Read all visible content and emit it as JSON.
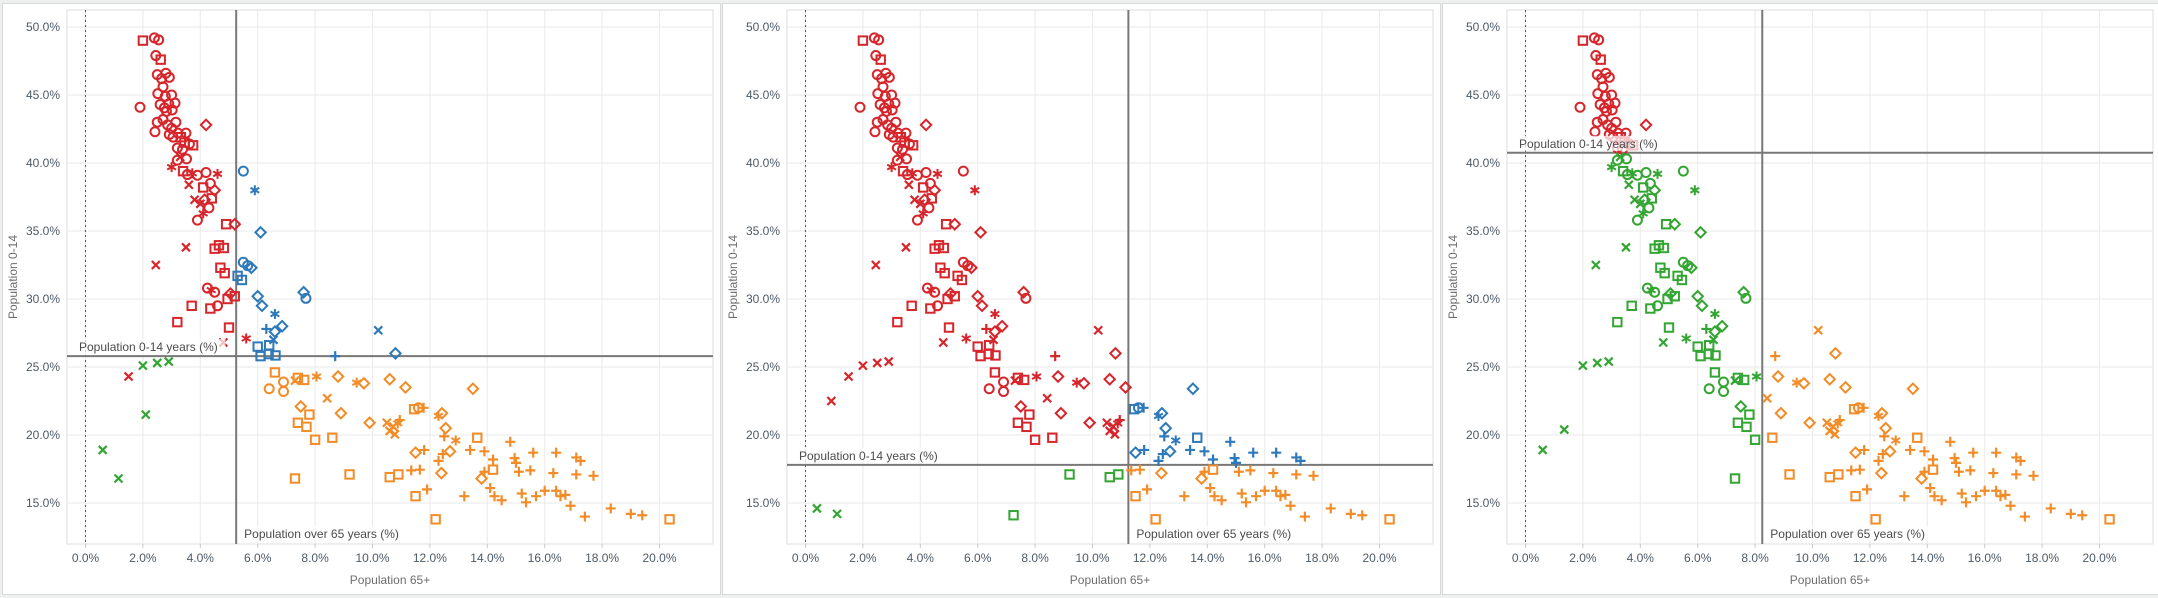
{
  "chart_data": {
    "type": "scatter",
    "x_title": "Population 65+",
    "y_title": "Population 0-14",
    "x_ticks": {
      "values": [
        0,
        2,
        4,
        6,
        8,
        10,
        12,
        14,
        16,
        18,
        20
      ],
      "labels": [
        "0.0%",
        "2.0%",
        "4.0%",
        "6.0%",
        "8.0%",
        "10.0%",
        "12.0%",
        "14.0%",
        "16.0%",
        "18.0%",
        "20.0%"
      ]
    },
    "y_ticks": {
      "values": [
        15,
        20,
        25,
        30,
        35,
        40,
        45,
        50
      ],
      "labels": [
        "15.0%",
        "20.0%",
        "25.0%",
        "30.0%",
        "35.0%",
        "40.0%",
        "45.0%",
        "50.0%"
      ]
    },
    "x_range": [
      -0.64,
      21.9
    ],
    "y_range": [
      12.0,
      51.2
    ],
    "grid": true,
    "legend": "none",
    "zero_line_x": 0,
    "colors": {
      "r": "#d6252b",
      "b": "#2e79b9",
      "o": "#f28c28",
      "g": "#33a532",
      "refline": "#787878",
      "grid": "#e9e9e9",
      "tick_text": "#4d5a66",
      "axis_title": "#6e6e6e",
      "ref_label_text": "#4b4b4b",
      "zero_line": "#555555"
    },
    "shape_legend": {
      "c": "circle",
      "s": "square",
      "x": "cross-x",
      "d": "diamond",
      "p": "plus",
      "a": "asterisk"
    },
    "panels": [
      {
        "name": "panel-1",
        "vline_value": 5.25,
        "hline_value": 25.8,
        "vline_label": "Population over 65 years (%)",
        "hline_label": "Population 0-14 years (%)"
      },
      {
        "name": "panel-2",
        "vline_value": 11.25,
        "hline_value": 17.8,
        "vline_label": "Population over 65 years (%)",
        "hline_label": "Population 0-14 years (%)"
      },
      {
        "name": "panel-3",
        "vline_value": 8.25,
        "hline_value": 40.75,
        "vline_label": "Population over 65 years (%)",
        "hline_label": "Population 0-14 years (%)"
      }
    ],
    "note_colors_per_point": "4th item = cluster color in panel1/panel2/panel3; '-' = not shown in that panel",
    "points": [
      [
        2.0,
        49.0,
        "s",
        "rrr"
      ],
      [
        2.4,
        49.2,
        "c",
        "rrr"
      ],
      [
        2.55,
        49.05,
        "c",
        "rrr"
      ],
      [
        2.45,
        47.9,
        "c",
        "rrr"
      ],
      [
        2.62,
        47.6,
        "s",
        "rrr"
      ],
      [
        2.5,
        46.5,
        "c",
        "rrr"
      ],
      [
        2.65,
        46.2,
        "c",
        "rrr"
      ],
      [
        2.8,
        46.6,
        "c",
        "rrr"
      ],
      [
        2.92,
        46.3,
        "c",
        "rrr"
      ],
      [
        2.7,
        45.6,
        "c",
        "rrr"
      ],
      [
        2.52,
        45.1,
        "c",
        "rrr"
      ],
      [
        2.78,
        44.9,
        "c",
        "rrr"
      ],
      [
        3.0,
        45.0,
        "c",
        "rrr"
      ],
      [
        1.9,
        44.1,
        "c",
        "rrr"
      ],
      [
        2.6,
        44.3,
        "c",
        "rrr"
      ],
      [
        2.75,
        44.05,
        "c",
        "rrr"
      ],
      [
        2.9,
        44.35,
        "c",
        "rrr"
      ],
      [
        2.82,
        43.8,
        "c",
        "rrr"
      ],
      [
        3.02,
        43.9,
        "c",
        "rrr"
      ],
      [
        3.12,
        44.4,
        "c",
        "rrr"
      ],
      [
        2.5,
        43.0,
        "c",
        "rrr"
      ],
      [
        2.7,
        43.2,
        "c",
        "rrr"
      ],
      [
        2.86,
        42.8,
        "c",
        "rrr"
      ],
      [
        3.0,
        42.55,
        "c",
        "rrr"
      ],
      [
        3.15,
        43.0,
        "c",
        "rrr"
      ],
      [
        2.42,
        42.3,
        "c",
        "rrr"
      ],
      [
        2.92,
        42.1,
        "c",
        "rrr"
      ],
      [
        3.05,
        41.9,
        "c",
        "rrr"
      ],
      [
        3.22,
        42.2,
        "c",
        "rrr"
      ],
      [
        3.32,
        41.9,
        "s",
        "rrr"
      ],
      [
        3.5,
        42.2,
        "c",
        "rrr"
      ],
      [
        3.45,
        41.5,
        "s",
        "rrr"
      ],
      [
        3.62,
        41.4,
        "c",
        "rrr"
      ],
      [
        3.75,
        41.3,
        "s",
        "rrr"
      ],
      [
        4.2,
        42.8,
        "d",
        "rrr"
      ],
      [
        3.2,
        41.1,
        "c",
        "rrr"
      ],
      [
        3.38,
        41.0,
        "c",
        "rrr"
      ],
      [
        3.0,
        39.7,
        "a",
        "rrg"
      ],
      [
        3.2,
        40.2,
        "c",
        "rrg"
      ],
      [
        3.3,
        40.45,
        "x",
        "rrg"
      ],
      [
        3.52,
        40.3,
        "c",
        "rrg"
      ],
      [
        3.4,
        39.4,
        "s",
        "rrg"
      ],
      [
        3.55,
        39.15,
        "c",
        "rrg"
      ],
      [
        3.72,
        39.25,
        "a",
        "rrg"
      ],
      [
        3.9,
        39.1,
        "c",
        "rrg"
      ],
      [
        4.2,
        39.3,
        "c",
        "rrg"
      ],
      [
        4.6,
        39.2,
        "a",
        "rrg"
      ],
      [
        5.5,
        39.4,
        "c",
        "brg"
      ],
      [
        3.6,
        38.4,
        "x",
        "rrg"
      ],
      [
        4.1,
        38.2,
        "s",
        "rrg"
      ],
      [
        4.35,
        38.5,
        "c",
        "rrg"
      ],
      [
        4.5,
        38.0,
        "d",
        "rrg"
      ],
      [
        5.9,
        38.0,
        "a",
        "brg"
      ],
      [
        3.8,
        37.3,
        "x",
        "rrg"
      ],
      [
        4.0,
        37.0,
        "x",
        "rrg"
      ],
      [
        4.15,
        37.3,
        "d",
        "rrg"
      ],
      [
        4.4,
        37.4,
        "s",
        "rrg"
      ],
      [
        4.3,
        36.7,
        "c",
        "rrg"
      ],
      [
        4.1,
        36.3,
        "a",
        "rrg"
      ],
      [
        3.9,
        35.8,
        "c",
        "rrg"
      ],
      [
        4.9,
        35.5,
        "s",
        "rrg"
      ],
      [
        5.2,
        35.5,
        "d",
        "rrg"
      ],
      [
        6.1,
        34.9,
        "d",
        "brg"
      ],
      [
        3.5,
        33.8,
        "x",
        "rrg"
      ],
      [
        4.5,
        33.7,
        "s",
        "rrg"
      ],
      [
        4.65,
        33.95,
        "s",
        "rrg"
      ],
      [
        4.82,
        33.75,
        "s",
        "rrg"
      ],
      [
        2.45,
        32.5,
        "x",
        "rrg"
      ],
      [
        4.7,
        32.3,
        "s",
        "rrg"
      ],
      [
        5.5,
        32.7,
        "c",
        "brg"
      ],
      [
        5.65,
        32.45,
        "c",
        "brg"
      ],
      [
        5.78,
        32.3,
        "d",
        "brg"
      ],
      [
        4.85,
        31.9,
        "s",
        "rrg"
      ],
      [
        5.3,
        31.7,
        "s",
        "brg"
      ],
      [
        5.45,
        31.4,
        "s",
        "brg"
      ],
      [
        4.25,
        30.8,
        "c",
        "rrg"
      ],
      [
        4.38,
        30.65,
        "a",
        "rrg"
      ],
      [
        4.5,
        30.5,
        "c",
        "rrg"
      ],
      [
        5.05,
        30.4,
        "d",
        "rrg"
      ],
      [
        5.2,
        30.2,
        "s",
        "rrg"
      ],
      [
        4.95,
        30.0,
        "s",
        "rrg"
      ],
      [
        4.6,
        29.5,
        "c",
        "rrg"
      ],
      [
        4.35,
        29.3,
        "s",
        "rrg"
      ],
      [
        3.7,
        29.5,
        "s",
        "rrg"
      ],
      [
        6.0,
        30.2,
        "d",
        "brg"
      ],
      [
        6.15,
        29.5,
        "d",
        "brg"
      ],
      [
        7.6,
        30.5,
        "d",
        "brg"
      ],
      [
        7.68,
        30.05,
        "c",
        "brg"
      ],
      [
        3.2,
        28.3,
        "s",
        "rrg"
      ],
      [
        5.0,
        27.9,
        "s",
        "rrg"
      ],
      [
        6.6,
        28.9,
        "a",
        "brg"
      ],
      [
        6.85,
        28.0,
        "d",
        "brg"
      ],
      [
        6.6,
        27.6,
        "d",
        "brg"
      ],
      [
        6.3,
        27.8,
        "p",
        "brg"
      ],
      [
        5.6,
        27.1,
        "a",
        "rrg"
      ],
      [
        4.8,
        26.8,
        "x",
        "rrg"
      ],
      [
        6.55,
        27.0,
        "x",
        "brg"
      ],
      [
        10.2,
        27.7,
        "x",
        "bro"
      ],
      [
        6.0,
        26.5,
        "s",
        "brg"
      ],
      [
        6.4,
        26.6,
        "s",
        "brg"
      ],
      [
        10.8,
        26.0,
        "d",
        "bro"
      ],
      [
        6.1,
        25.8,
        "s",
        "brg"
      ],
      [
        6.38,
        25.95,
        "s",
        "brg"
      ],
      [
        6.62,
        25.85,
        "s",
        "brg"
      ],
      [
        8.7,
        25.8,
        "p",
        "bro"
      ],
      [
        0.9,
        22.5,
        "x",
        "-r-"
      ],
      [
        1.5,
        24.3,
        "x",
        "rr-"
      ],
      [
        2.0,
        25.1,
        "x",
        "grg"
      ],
      [
        2.5,
        25.3,
        "x",
        "grg"
      ],
      [
        2.9,
        25.4,
        "x",
        "grg"
      ],
      [
        0.4,
        14.6,
        "x",
        "-g-"
      ],
      [
        1.1,
        14.2,
        "x",
        "-g-"
      ],
      [
        0.6,
        18.9,
        "x",
        "g-g"
      ],
      [
        1.15,
        16.8,
        "x",
        "g--"
      ],
      [
        1.35,
        20.4,
        "x",
        "--g"
      ],
      [
        2.1,
        21.5,
        "x",
        "g--"
      ],
      [
        6.4,
        23.4,
        "c",
        "org"
      ],
      [
        6.9,
        23.2,
        "c",
        "org"
      ],
      [
        7.4,
        24.2,
        "s",
        "org"
      ],
      [
        7.62,
        24.05,
        "s",
        "org"
      ],
      [
        7.5,
        22.1,
        "d",
        "org"
      ],
      [
        7.8,
        21.5,
        "s",
        "org"
      ],
      [
        7.4,
        20.9,
        "s",
        "org"
      ],
      [
        7.7,
        20.6,
        "s",
        "org"
      ],
      [
        8.0,
        19.65,
        "s",
        "org"
      ],
      [
        8.6,
        19.8,
        "s",
        "oro"
      ],
      [
        8.9,
        21.6,
        "d",
        "oro"
      ],
      [
        9.7,
        23.8,
        "d",
        "oro"
      ],
      [
        10.6,
        24.1,
        "d",
        "oro"
      ],
      [
        11.15,
        23.5,
        "d",
        "oro"
      ],
      [
        10.5,
        20.9,
        "x",
        "oro"
      ],
      [
        10.6,
        20.3,
        "x",
        "oro"
      ],
      [
        10.72,
        20.62,
        "x",
        "oro"
      ],
      [
        10.78,
        20.05,
        "x",
        "oro"
      ],
      [
        10.88,
        20.85,
        "a",
        "oro"
      ],
      [
        10.95,
        21.1,
        "p",
        "oro"
      ],
      [
        8.8,
        24.3,
        "d",
        "oro"
      ],
      [
        6.6,
        24.6,
        "s",
        "org"
      ],
      [
        6.9,
        23.9,
        "c",
        "org"
      ],
      [
        7.3,
        24.0,
        "x",
        "org"
      ],
      [
        8.05,
        24.3,
        "a",
        "org"
      ],
      [
        9.45,
        23.85,
        "a",
        "oro"
      ],
      [
        9.9,
        20.9,
        "d",
        "oro"
      ],
      [
        8.42,
        22.7,
        "x",
        "oro"
      ],
      [
        7.25,
        14.1,
        "s",
        "-g-"
      ],
      [
        7.3,
        16.8,
        "s",
        "o-g"
      ],
      [
        9.2,
        17.1,
        "s",
        "ogo"
      ],
      [
        10.6,
        16.9,
        "s",
        "ogo"
      ],
      [
        10.9,
        17.1,
        "s",
        "ogo"
      ],
      [
        11.45,
        21.9,
        "s",
        "obo"
      ],
      [
        11.6,
        22.0,
        "c",
        "obo"
      ],
      [
        11.78,
        22.0,
        "p",
        "obo"
      ],
      [
        12.3,
        21.4,
        "a",
        "obo"
      ],
      [
        12.42,
        21.6,
        "d",
        "obo"
      ],
      [
        13.5,
        23.4,
        "d",
        "obo"
      ],
      [
        12.55,
        20.5,
        "d",
        "obo"
      ],
      [
        12.5,
        19.9,
        "p",
        "obo"
      ],
      [
        12.9,
        19.6,
        "a",
        "obo"
      ],
      [
        13.65,
        19.8,
        "s",
        "obo"
      ],
      [
        12.7,
        18.8,
        "d",
        "obo"
      ],
      [
        13.4,
        18.9,
        "p",
        "obo"
      ],
      [
        11.5,
        18.7,
        "d",
        "obo"
      ],
      [
        11.8,
        18.9,
        "p",
        "obo"
      ],
      [
        12.3,
        18.1,
        "p",
        "obo"
      ],
      [
        12.45,
        18.6,
        "p",
        "obo"
      ],
      [
        13.9,
        18.8,
        "p",
        "obo"
      ],
      [
        14.2,
        18.2,
        "p",
        "obo"
      ],
      [
        14.8,
        19.5,
        "p",
        "obo"
      ],
      [
        14.95,
        18.3,
        "p",
        "obo"
      ],
      [
        15.6,
        18.7,
        "p",
        "obo"
      ],
      [
        16.4,
        18.7,
        "p",
        "obo"
      ],
      [
        17.1,
        18.35,
        "p",
        "obo"
      ],
      [
        15.0,
        17.95,
        "p",
        "obo"
      ],
      [
        17.25,
        18.1,
        "p",
        "obo"
      ],
      [
        11.35,
        17.4,
        "p",
        "ooo"
      ],
      [
        11.65,
        17.45,
        "p",
        "ooo"
      ],
      [
        12.4,
        17.2,
        "d",
        "ooo"
      ],
      [
        13.9,
        17.3,
        "p",
        "ooo"
      ],
      [
        14.2,
        17.45,
        "s",
        "ooo"
      ],
      [
        13.8,
        16.8,
        "d",
        "ooo"
      ],
      [
        15.1,
        17.3,
        "p",
        "ooo"
      ],
      [
        15.5,
        17.4,
        "p",
        "ooo"
      ],
      [
        16.3,
        17.2,
        "p",
        "ooo"
      ],
      [
        17.1,
        17.1,
        "p",
        "ooo"
      ],
      [
        17.7,
        17.0,
        "p",
        "ooo"
      ],
      [
        11.5,
        15.5,
        "s",
        "ooo"
      ],
      [
        11.9,
        16.0,
        "p",
        "ooo"
      ],
      [
        13.2,
        15.5,
        "p",
        "ooo"
      ],
      [
        14.1,
        16.1,
        "p",
        "ooo"
      ],
      [
        14.25,
        15.5,
        "p",
        "ooo"
      ],
      [
        14.5,
        15.2,
        "p",
        "ooo"
      ],
      [
        15.2,
        15.7,
        "p",
        "ooo"
      ],
      [
        15.35,
        15.05,
        "p",
        "ooo"
      ],
      [
        15.7,
        15.5,
        "p",
        "ooo"
      ],
      [
        16.0,
        15.9,
        "p",
        "ooo"
      ],
      [
        16.4,
        15.9,
        "p",
        "ooo"
      ],
      [
        16.55,
        15.5,
        "p",
        "ooo"
      ],
      [
        16.72,
        15.6,
        "p",
        "ooo"
      ],
      [
        16.9,
        14.8,
        "p",
        "ooo"
      ],
      [
        17.4,
        14.0,
        "p",
        "ooo"
      ],
      [
        18.3,
        14.6,
        "p",
        "ooo"
      ],
      [
        19.0,
        14.2,
        "p",
        "ooo"
      ],
      [
        19.4,
        14.1,
        "p",
        "ooo"
      ],
      [
        20.35,
        13.8,
        "s",
        "ooo"
      ],
      [
        12.2,
        13.8,
        "s",
        "ooo"
      ]
    ]
  }
}
